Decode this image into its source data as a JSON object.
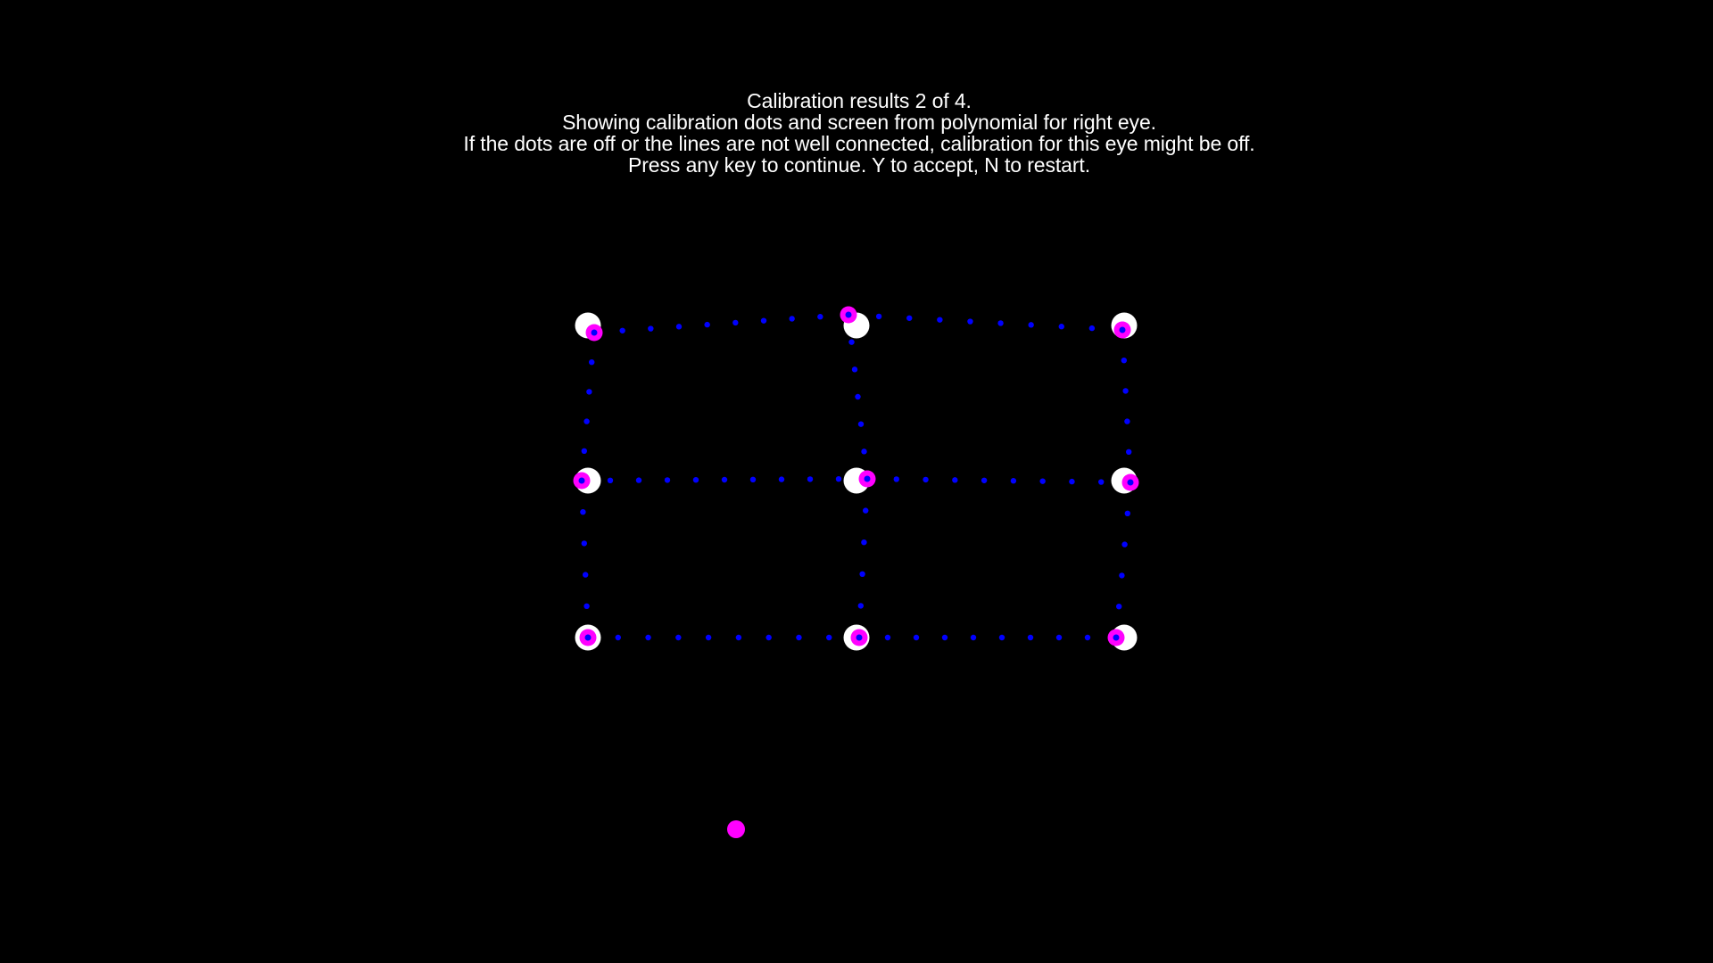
{
  "screen": {
    "background_color": "#000000",
    "instruction_lines": [
      "Calibration results 2 of 4.",
      "Showing calibration dots and screen from polynomial for right eye.",
      "If the dots are off or the lines are not well connected, calibration for this eye might be off.",
      "Press any key to continue. Y to accept, N to restart."
    ]
  },
  "colors": {
    "text": "#ffffff",
    "target_dot": "#ffffff",
    "estimate_dot": "#ff00ff",
    "grid_line_dot": "#0000ff",
    "gaze_dot": "#ff00ff"
  }
}
